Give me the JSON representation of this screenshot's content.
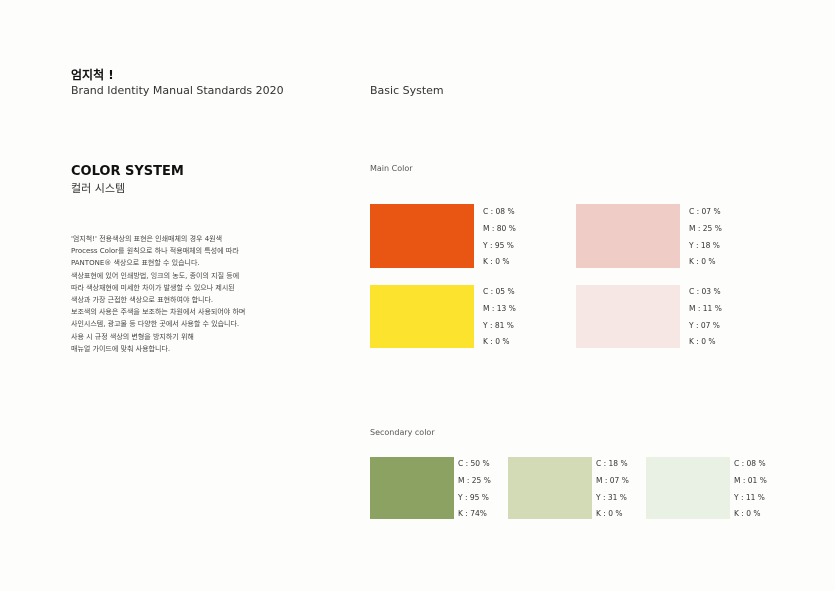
{
  "header": {
    "brand_title": "엄지척 !",
    "brand_subtitle": "Brand Identity Manual Standards 2020",
    "section": "Basic System"
  },
  "color_system": {
    "title": "COLOR SYSTEM",
    "subtitle": "컬러 시스템",
    "description": [
      "'엄지척!' 전용색상의 표현은 인쇄매체의 경우 4원색",
      "Process Color를 원칙으로 하나 적용매체의 특성에 따라",
      "PANTONE® 색상으로 표현할 수 있습니다.",
      "색상표현에 있어 인쇄방법, 잉크의 농도, 종이의 지질 등에",
      "따라 색상재현에 미세한 차이가 발생할 수 있으나 제시된",
      "색상과 가장 근접한 색상으로 표현하여야 합니다.",
      "보조색의 사용은 주색을 보조하는 차원에서 사용되어야 하며",
      "사인시스템, 광고물 등 다양한 곳에서 사용할 수 있습니다.",
      "사용 시 규정 색상의 변형을 방지하기 위해",
      "매뉴얼 가이드에 맞춰 사용합니다."
    ]
  },
  "main_color": {
    "label": "Main Color",
    "swatches": [
      {
        "color": "#e95513",
        "c": "C : 08 %",
        "m": "M : 80 %",
        "y": "Y : 95 %",
        "k": "K : 0 %"
      },
      {
        "color": "#efccc5",
        "c": "C : 07 %",
        "m": "M : 25 %",
        "y": "Y : 18 %",
        "k": "K : 0 %"
      },
      {
        "color": "#fce32d",
        "c": "C : 05 %",
        "m": "M : 13 %",
        "y": "Y : 81 %",
        "k": "K : 0 %"
      },
      {
        "color": "#f6e7e4",
        "c": "C : 03 %",
        "m": "M : 11 %",
        "y": "Y : 07 %",
        "k": "K : 0 %"
      }
    ]
  },
  "secondary_color": {
    "label": "Secondary color",
    "swatches": [
      {
        "color": "#8ba263",
        "c": "C : 50 %",
        "m": "M : 25 %",
        "y": "Y : 95 %",
        "k": "K : 74%"
      },
      {
        "color": "#d3dab6",
        "c": "C : 18 %",
        "m": "M : 07 %",
        "y": "Y : 31 %",
        "k": "K : 0 %"
      },
      {
        "color": "#e8f1e3",
        "c": "C : 08 %",
        "m": "M : 01 %",
        "y": "Y : 11 %",
        "k": "K : 0 %"
      }
    ]
  }
}
